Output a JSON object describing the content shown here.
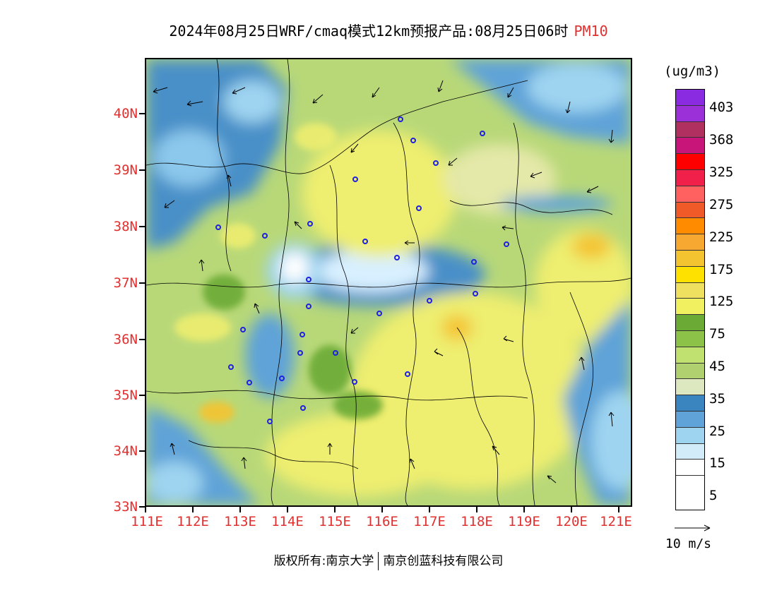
{
  "title": {
    "text": "2024年08月25日WRF/cmaq模式12km预报产品:08月25日06时",
    "pollutant": "PM10",
    "pollutant_color": "#e03030"
  },
  "axes": {
    "lat_labels": [
      "40N",
      "39N",
      "38N",
      "37N",
      "36N",
      "35N",
      "34N",
      "33N"
    ],
    "lon_labels": [
      "111E",
      "112E",
      "113E",
      "114E",
      "115E",
      "116E",
      "117E",
      "118E",
      "119E",
      "120E",
      "121E"
    ],
    "lat_range": [
      33,
      41
    ],
    "lon_range": [
      111,
      121.3
    ],
    "label_color": "#e03030"
  },
  "legend": {
    "unit": "(ug/m3)",
    "levels": [
      "403",
      "368",
      "325",
      "275",
      "225",
      "175",
      "125",
      "75",
      "45",
      "35",
      "25",
      "15",
      "5"
    ],
    "colors": [
      "#8a2be2",
      "#9b30d9",
      "#b03060",
      "#c8157a",
      "#ff0000",
      "#f0204a",
      "#ff6060",
      "#f05a28",
      "#ff8c00",
      "#f6a830",
      "#f4c430",
      "#ffe100",
      "#f0e060",
      "#f0f060",
      "#6aaa35",
      "#8cc248",
      "#c0e070",
      "#b0d070",
      "#dde8c0",
      "#3a84c0",
      "#5fa3d8",
      "#9ed4f0",
      "#d2ecfa",
      "#ffffff"
    ]
  },
  "wind": {
    "reference_label": "10 m/s"
  },
  "copyright": {
    "owner": "版权所有:南京大学",
    "partner": "南京创蓝科技有限公司"
  }
}
